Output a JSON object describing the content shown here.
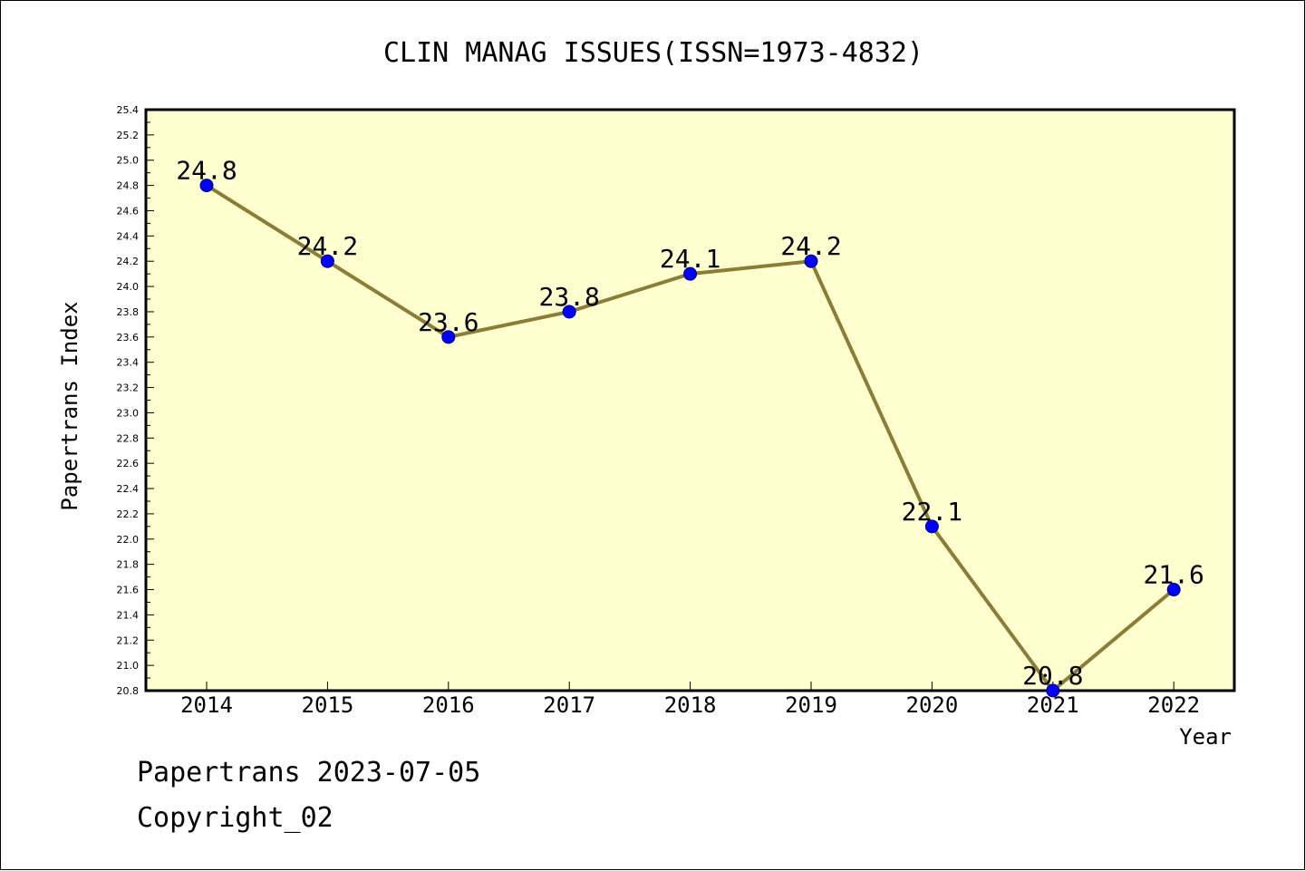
{
  "colors": {
    "plot_background": "#ffffd0",
    "line": "#8b7d35",
    "marker_fill": "#0000ff",
    "marker_stroke": "#000080"
  },
  "chart_data": {
    "type": "line",
    "title": "CLIN MANAG ISSUES(ISSN=1973-4832)",
    "xlabel": "Year",
    "ylabel": "Papertrans Index",
    "categories": [
      "2014",
      "2015",
      "2016",
      "2017",
      "2018",
      "2019",
      "2020",
      "2021",
      "2022"
    ],
    "series": [
      {
        "values": [
          24.8,
          24.2,
          23.6,
          23.8,
          24.1,
          24.2,
          22.1,
          20.8,
          21.6
        ]
      }
    ],
    "data_labels": [
      "24.8",
      "24.2",
      "23.6",
      "23.8",
      "24.1",
      "24.2",
      "22.1",
      "20.8",
      "21.6"
    ],
    "ylim": [
      20.8,
      25.4
    ],
    "yticks": [
      "20.8",
      "21.0",
      "21.2",
      "21.4",
      "21.6",
      "21.8",
      "22.0",
      "22.2",
      "22.4",
      "22.6",
      "22.8",
      "23.0",
      "23.2",
      "23.4",
      "23.6",
      "23.8",
      "24.0",
      "24.2",
      "24.4",
      "24.6",
      "24.8",
      "25.0",
      "25.2",
      "25.4"
    ],
    "grid": false,
    "legend": "none"
  },
  "footer": {
    "date_line": "Papertrans 2023-07-05",
    "copyright_line": "Copyright_02"
  }
}
